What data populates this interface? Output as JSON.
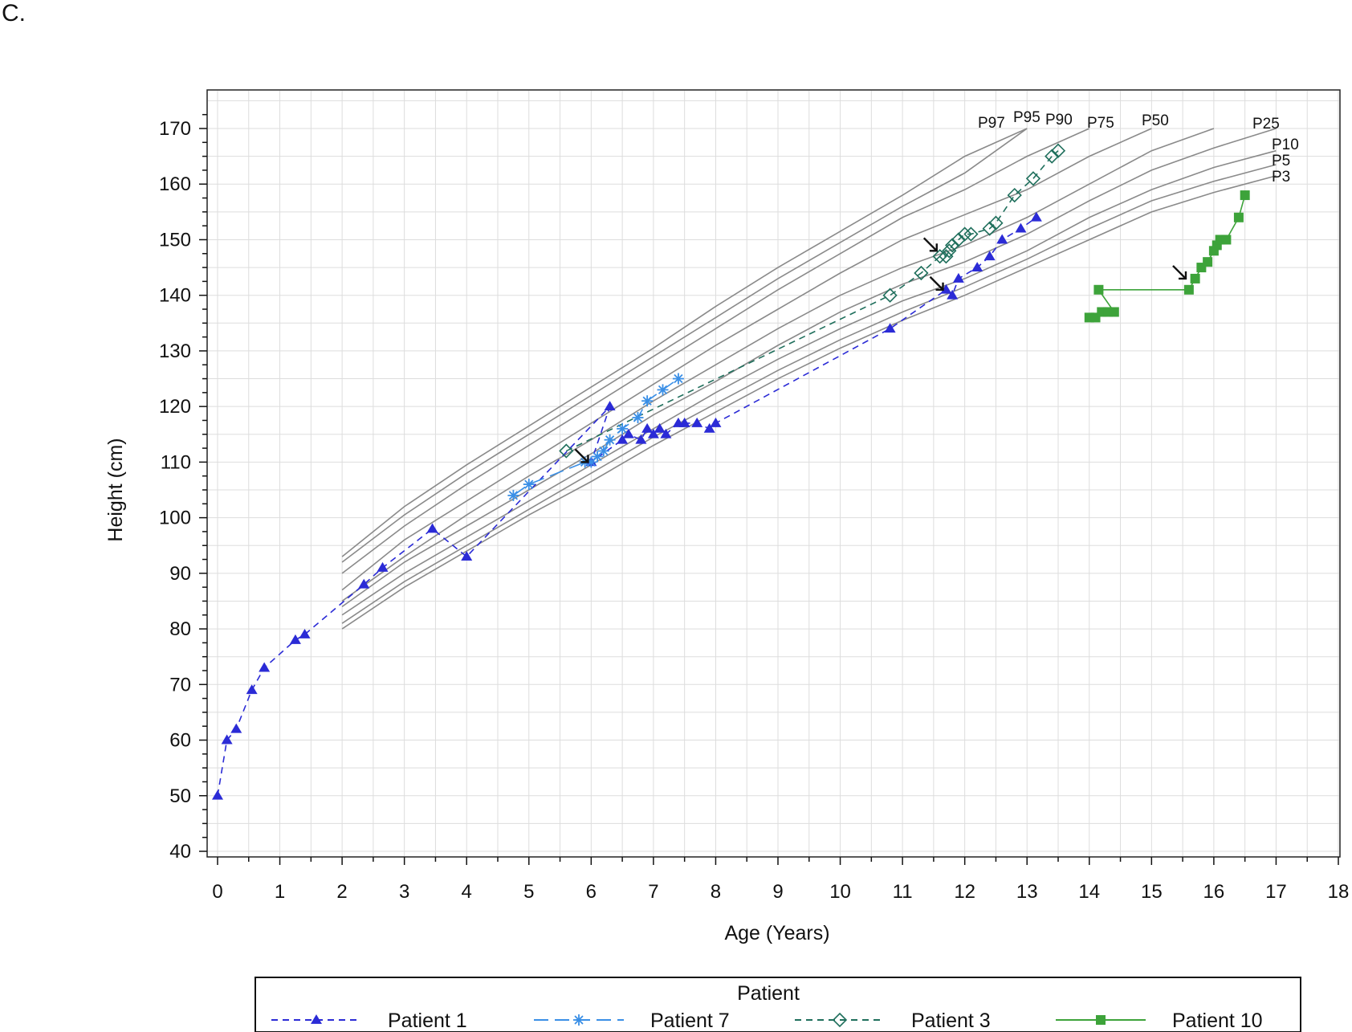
{
  "panel_label": "C.",
  "chart_data": {
    "type": "line",
    "xlabel": "Age (Years)",
    "ylabel": "Height (cm)",
    "xlim": [
      0,
      18
    ],
    "ylim": [
      40,
      170
    ],
    "x_ticks": [
      0,
      1,
      2,
      3,
      4,
      5,
      6,
      7,
      8,
      9,
      10,
      11,
      12,
      13,
      14,
      15,
      16,
      17,
      18
    ],
    "y_ticks": [
      40,
      50,
      60,
      70,
      80,
      90,
      100,
      110,
      120,
      130,
      140,
      150,
      160,
      170
    ],
    "grid": true,
    "legend": {
      "title": "Patient",
      "placement": "bottom",
      "entries": [
        "Patient 1",
        "Patient 7",
        "Patient 3",
        "Patient 10"
      ]
    },
    "percentiles": [
      {
        "label": "P97",
        "x": [
          2,
          3,
          4,
          5,
          6,
          7,
          8,
          9,
          10,
          11,
          12,
          13
        ],
        "values": [
          93,
          102,
          109.5,
          116.5,
          123.5,
          130.5,
          138,
          145,
          151.5,
          158,
          165,
          170
        ]
      },
      {
        "label": "P95",
        "x": [
          2,
          3,
          4,
          5,
          6,
          7,
          8,
          9,
          10,
          11,
          12,
          13
        ],
        "values": [
          92,
          100.5,
          108,
          115,
          122,
          129,
          136,
          143,
          149.5,
          156,
          162,
          170
        ]
      },
      {
        "label": "P90",
        "x": [
          2,
          3,
          4,
          5,
          6,
          7,
          8,
          9,
          10,
          11,
          12,
          13,
          14
        ],
        "values": [
          90,
          98.5,
          106,
          113,
          120,
          127,
          134,
          141,
          147.5,
          154,
          159,
          165,
          170
        ]
      },
      {
        "label": "P75",
        "x": [
          2,
          3,
          4,
          5,
          6,
          7,
          8,
          9,
          10,
          11,
          12,
          13,
          14,
          15
        ],
        "values": [
          87,
          96,
          103,
          110,
          117,
          124,
          131,
          137.5,
          144,
          150,
          154.5,
          159,
          165,
          170
        ]
      },
      {
        "label": "P50",
        "x": [
          2,
          3,
          4,
          5,
          6,
          7,
          8,
          9,
          10,
          11,
          12,
          13,
          14,
          15,
          16
        ],
        "values": [
          85,
          93,
          100.5,
          107.5,
          114,
          121,
          127.5,
          134,
          140,
          145,
          149,
          154,
          160,
          166,
          170
        ]
      },
      {
        "label": "P25",
        "x": [
          2,
          3,
          4,
          5,
          6,
          7,
          8,
          9,
          10,
          11,
          12,
          13,
          14,
          15,
          16,
          17
        ],
        "values": [
          84,
          92,
          98.5,
          105,
          111.5,
          118.5,
          124.5,
          131,
          137,
          142,
          146,
          151,
          157,
          162.5,
          166.5,
          170
        ]
      },
      {
        "label": "P10",
        "x": [
          2,
          3,
          4,
          5,
          6,
          7,
          8,
          9,
          10,
          11,
          12,
          13,
          14,
          15,
          16,
          17
        ],
        "values": [
          82.5,
          90,
          96.5,
          103,
          109.5,
          116,
          122.5,
          128.5,
          134,
          139,
          143,
          148,
          154,
          159,
          163,
          166
        ]
      },
      {
        "label": "P5",
        "x": [
          2,
          3,
          4,
          5,
          6,
          7,
          8,
          9,
          10,
          11,
          12,
          13,
          14,
          15,
          16,
          17
        ],
        "values": [
          81,
          88.5,
          95,
          101.5,
          108,
          114.5,
          120.5,
          126.5,
          132,
          137,
          141.5,
          146.5,
          152,
          157,
          160.5,
          163.5
        ]
      },
      {
        "label": "P3",
        "x": [
          2,
          3,
          4,
          5,
          6,
          7,
          8,
          9,
          10,
          11,
          12,
          13,
          14,
          15,
          16,
          17
        ],
        "values": [
          80,
          87.5,
          94,
          100.5,
          106.5,
          113,
          119,
          125,
          130.5,
          135.5,
          140,
          145,
          150,
          155,
          158.5,
          161.5
        ]
      }
    ],
    "series": [
      {
        "name": "Patient 1",
        "color": "#2b2bd6",
        "marker": "triangle",
        "dash": "dashed",
        "x": [
          0,
          0.15,
          0.3,
          0.55,
          0.75,
          1.25,
          1.4,
          2.35,
          2.65,
          3.45,
          4.0,
          6.3,
          6.0,
          6.5,
          6.6,
          6.8,
          6.9,
          7.0,
          7.1,
          7.2,
          7.4,
          7.5,
          7.7,
          7.9,
          8.0,
          10.8,
          11.7,
          11.8,
          11.9,
          12.2,
          12.4,
          12.6,
          12.9,
          13.15
        ],
        "values": [
          50,
          60,
          62,
          69,
          73,
          78,
          79,
          88,
          91,
          98,
          93,
          120,
          110,
          114,
          115,
          114,
          116,
          115,
          116,
          115,
          117,
          117,
          117,
          116,
          117,
          134,
          141,
          140,
          143,
          145,
          147,
          150,
          152,
          154
        ]
      },
      {
        "name": "Patient 7",
        "color": "#3a8fe6",
        "marker": "star",
        "dash": "long-dash",
        "x": [
          4.75,
          5.0,
          5.9,
          6.0,
          6.1,
          6.2,
          6.3,
          6.5,
          6.75,
          6.9,
          7.15,
          7.4
        ],
        "values": [
          104,
          106,
          110,
          110,
          111,
          112,
          114,
          116,
          118,
          121,
          123,
          125
        ]
      },
      {
        "name": "Patient 3",
        "color": "#1f6f5c",
        "marker": "diamond",
        "dash": "dashed",
        "x": [
          5.6,
          10.8,
          11.3,
          11.6,
          11.7,
          11.75,
          11.8,
          11.9,
          12.0,
          12.1,
          12.4,
          12.5,
          12.8,
          13.1,
          13.4,
          13.5
        ],
        "values": [
          112,
          140,
          144,
          147,
          147,
          148,
          149,
          150,
          151,
          151,
          152,
          153,
          158,
          161,
          165,
          166
        ]
      },
      {
        "name": "Patient 10",
        "color": "#3da33a",
        "marker": "square",
        "dash": "solid",
        "x": [
          14.0,
          14.1,
          14.2,
          14.3,
          14.4,
          14.15,
          15.6,
          15.7,
          15.8,
          15.9,
          16.0,
          16.05,
          16.1,
          16.2,
          16.4,
          16.5
        ],
        "values": [
          136,
          136,
          137,
          137,
          137,
          141,
          141,
          143,
          145,
          146,
          148,
          149,
          150,
          150,
          154,
          158
        ]
      }
    ],
    "annotations": [
      {
        "type": "arrow",
        "x": 5.95,
        "y": 110
      },
      {
        "type": "arrow",
        "x": 11.55,
        "y": 148
      },
      {
        "type": "arrow",
        "x": 11.65,
        "y": 141
      },
      {
        "type": "arrow",
        "x": 15.55,
        "y": 143
      }
    ]
  }
}
